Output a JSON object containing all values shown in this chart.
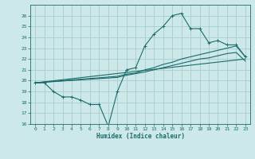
{
  "xlabel": "Humidex (Indice chaleur)",
  "bg_color": "#cce8e8",
  "grid_color": "#aacccc",
  "line_color": "#1a6b6b",
  "xlim": [
    -0.5,
    23.5
  ],
  "ylim": [
    16,
    27
  ],
  "xtick_vals": [
    0,
    1,
    2,
    3,
    4,
    5,
    6,
    7,
    8,
    9,
    10,
    11,
    12,
    13,
    14,
    15,
    16,
    17,
    18,
    19,
    20,
    21,
    22,
    23
  ],
  "ytick_vals": [
    16,
    17,
    18,
    19,
    20,
    21,
    22,
    23,
    24,
    25,
    26
  ],
  "main_x": [
    0,
    1,
    2,
    3,
    4,
    5,
    6,
    7,
    8,
    9,
    10,
    11,
    12,
    13,
    14,
    15,
    16,
    17,
    18,
    19,
    20,
    21,
    22,
    23
  ],
  "main_y": [
    19.8,
    19.8,
    19.0,
    18.5,
    18.5,
    18.2,
    17.8,
    17.8,
    15.8,
    19.0,
    21.0,
    21.2,
    23.2,
    24.3,
    25.0,
    26.0,
    26.2,
    24.8,
    24.8,
    23.5,
    23.7,
    23.3,
    23.3,
    22.2
  ],
  "line2_x": [
    0,
    23
  ],
  "line2_y": [
    19.8,
    22.0
  ],
  "line3_x": [
    0,
    9,
    10,
    11,
    12,
    13,
    14,
    15,
    16,
    17,
    18,
    19,
    20,
    21,
    22,
    23
  ],
  "line3_y": [
    19.8,
    20.4,
    20.6,
    20.7,
    21.0,
    21.2,
    21.5,
    21.7,
    22.0,
    22.2,
    22.4,
    22.6,
    22.8,
    23.0,
    23.2,
    22.2
  ],
  "line4_x": [
    0,
    9,
    10,
    11,
    12,
    13,
    14,
    15,
    16,
    17,
    18,
    19,
    20,
    21,
    22,
    23
  ],
  "line4_y": [
    19.8,
    20.3,
    20.5,
    20.65,
    20.8,
    21.0,
    21.2,
    21.4,
    21.6,
    21.8,
    22.0,
    22.1,
    22.3,
    22.5,
    22.6,
    21.8
  ]
}
